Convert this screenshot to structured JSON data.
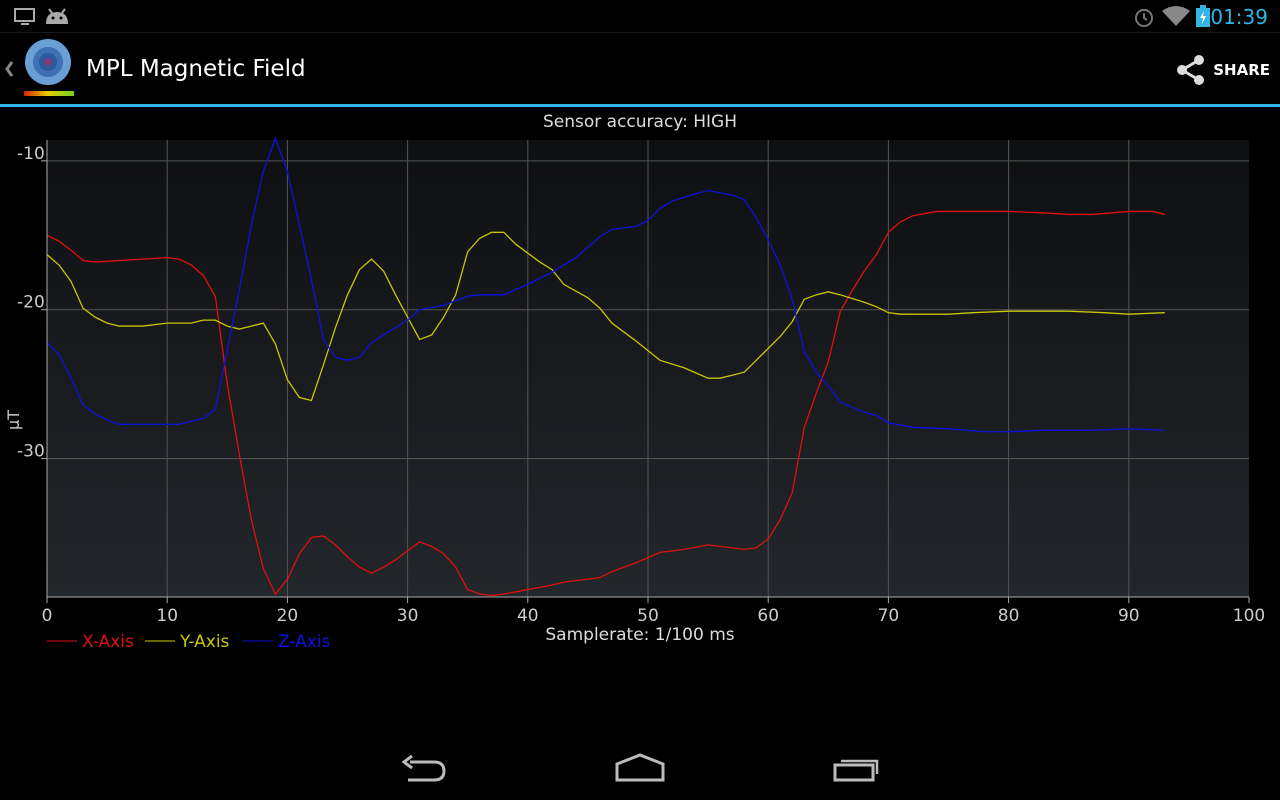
{
  "status_bar": {
    "time": "01:39",
    "icons": [
      "monitor-icon",
      "android-icon",
      "alarm-icon",
      "wifi-icon",
      "battery-charging-icon"
    ]
  },
  "action_bar": {
    "title": "MPL Magnetic Field",
    "share_label": "SHARE",
    "icons": [
      "back-chevron-icon",
      "app-logo-icon",
      "share-icon"
    ]
  },
  "colors": {
    "accent": "#33b5e5",
    "x_axis": "#e01010",
    "y_axis": "#c8c800",
    "z_axis": "#1010e0"
  },
  "chart_data": {
    "type": "line",
    "title": "Sensor accuracy: HIGH",
    "xlabel": "Samplerate: 1/100 ms",
    "ylabel": "μT",
    "xlim": [
      0,
      100
    ],
    "ylim": [
      -39.3,
      -8.6
    ],
    "xticks": [
      "0",
      "10",
      "20",
      "30",
      "40",
      "50",
      "60",
      "70",
      "80",
      "90",
      "100"
    ],
    "yticks": [
      {
        "value": -10,
        "label": "-10"
      },
      {
        "value": -20,
        "label": "-20"
      },
      {
        "value": -30,
        "label": "-30"
      }
    ],
    "grid": true,
    "legend": "bottom-left",
    "series": [
      {
        "name": "X-Axis",
        "color": "#e01010",
        "points": [
          [
            0,
            -15.0
          ],
          [
            1,
            -15.4
          ],
          [
            2,
            -16.0
          ],
          [
            3,
            -16.7
          ],
          [
            4,
            -16.8
          ],
          [
            6,
            -16.7
          ],
          [
            8,
            -16.6
          ],
          [
            10,
            -16.5
          ],
          [
            11,
            -16.6
          ],
          [
            12,
            -17.0
          ],
          [
            13,
            -17.7
          ],
          [
            14,
            -19.1
          ],
          [
            15,
            -25.0
          ],
          [
            16,
            -29.7
          ],
          [
            17,
            -34.1
          ],
          [
            18,
            -37.4
          ],
          [
            19,
            -39.1
          ],
          [
            20,
            -38.1
          ],
          [
            21,
            -36.4
          ],
          [
            22,
            -35.3
          ],
          [
            23,
            -35.2
          ],
          [
            24,
            -35.8
          ],
          [
            25,
            -36.6
          ],
          [
            26,
            -37.3
          ],
          [
            27,
            -37.7
          ],
          [
            28,
            -37.3
          ],
          [
            29,
            -36.8
          ],
          [
            30,
            -36.2
          ],
          [
            31,
            -35.6
          ],
          [
            32,
            -35.9
          ],
          [
            33,
            -36.4
          ],
          [
            34,
            -37.3
          ],
          [
            35,
            -38.8
          ],
          [
            36,
            -39.1
          ],
          [
            37,
            -39.2
          ],
          [
            38,
            -39.1
          ],
          [
            40,
            -38.8
          ],
          [
            42,
            -38.5
          ],
          [
            43,
            -38.3
          ],
          [
            45,
            -38.1
          ],
          [
            46,
            -38.0
          ],
          [
            47,
            -37.6
          ],
          [
            49,
            -37.0
          ],
          [
            51,
            -36.3
          ],
          [
            53,
            -36.1
          ],
          [
            55,
            -35.8
          ],
          [
            56,
            -35.9
          ],
          [
            58,
            -36.1
          ],
          [
            59,
            -36.0
          ],
          [
            60,
            -35.4
          ],
          [
            61,
            -34.1
          ],
          [
            62,
            -32.3
          ],
          [
            63,
            -27.9
          ],
          [
            64,
            -25.6
          ],
          [
            65,
            -23.5
          ],
          [
            66,
            -20.1
          ],
          [
            67,
            -18.7
          ],
          [
            68,
            -17.4
          ],
          [
            69,
            -16.3
          ],
          [
            70,
            -14.8
          ],
          [
            71,
            -14.1
          ],
          [
            72,
            -13.7
          ],
          [
            74,
            -13.4
          ],
          [
            77,
            -13.4
          ],
          [
            80,
            -13.4
          ],
          [
            83,
            -13.5
          ],
          [
            85,
            -13.6
          ],
          [
            87,
            -13.6
          ],
          [
            90,
            -13.4
          ],
          [
            92,
            -13.4
          ],
          [
            93,
            -13.6
          ]
        ]
      },
      {
        "name": "Y-Axis",
        "color": "#c8c800",
        "points": [
          [
            0,
            -16.3
          ],
          [
            1,
            -17.0
          ],
          [
            2,
            -18.1
          ],
          [
            3,
            -19.9
          ],
          [
            4,
            -20.5
          ],
          [
            5,
            -20.9
          ],
          [
            6,
            -21.1
          ],
          [
            8,
            -21.1
          ],
          [
            10,
            -20.9
          ],
          [
            12,
            -20.9
          ],
          [
            13,
            -20.7
          ],
          [
            14,
            -20.7
          ],
          [
            15,
            -21.1
          ],
          [
            16,
            -21.3
          ],
          [
            17,
            -21.1
          ],
          [
            18,
            -20.9
          ],
          [
            19,
            -22.3
          ],
          [
            20,
            -24.7
          ],
          [
            21,
            -25.9
          ],
          [
            22,
            -26.1
          ],
          [
            23,
            -23.7
          ],
          [
            24,
            -21.2
          ],
          [
            25,
            -19.0
          ],
          [
            26,
            -17.3
          ],
          [
            27,
            -16.6
          ],
          [
            28,
            -17.4
          ],
          [
            29,
            -19.0
          ],
          [
            30,
            -20.5
          ],
          [
            31,
            -22.0
          ],
          [
            32,
            -21.7
          ],
          [
            33,
            -20.5
          ],
          [
            34,
            -19.0
          ],
          [
            35,
            -16.1
          ],
          [
            36,
            -15.2
          ],
          [
            37,
            -14.8
          ],
          [
            38,
            -14.8
          ],
          [
            39,
            -15.6
          ],
          [
            41,
            -16.8
          ],
          [
            42,
            -17.3
          ],
          [
            43,
            -18.3
          ],
          [
            45,
            -19.2
          ],
          [
            46,
            -19.9
          ],
          [
            47,
            -20.9
          ],
          [
            49,
            -22.1
          ],
          [
            51,
            -23.4
          ],
          [
            53,
            -23.9
          ],
          [
            55,
            -24.6
          ],
          [
            56,
            -24.6
          ],
          [
            57,
            -24.4
          ],
          [
            58,
            -24.2
          ],
          [
            59,
            -23.4
          ],
          [
            61,
            -21.8
          ],
          [
            62,
            -20.8
          ],
          [
            63,
            -19.3
          ],
          [
            64,
            -19.0
          ],
          [
            65,
            -18.8
          ],
          [
            66,
            -19.0
          ],
          [
            68,
            -19.5
          ],
          [
            69,
            -19.8
          ],
          [
            70,
            -20.2
          ],
          [
            71,
            -20.3
          ],
          [
            75,
            -20.3
          ],
          [
            77,
            -20.2
          ],
          [
            80,
            -20.1
          ],
          [
            85,
            -20.1
          ],
          [
            88,
            -20.2
          ],
          [
            90,
            -20.3
          ],
          [
            93,
            -20.2
          ]
        ]
      },
      {
        "name": "Z-Axis",
        "color": "#1010e0",
        "points": [
          [
            0,
            -22.2
          ],
          [
            1,
            -23.0
          ],
          [
            2,
            -24.6
          ],
          [
            3,
            -26.4
          ],
          [
            4,
            -27.0
          ],
          [
            5,
            -27.4
          ],
          [
            6,
            -27.7
          ],
          [
            8,
            -27.7
          ],
          [
            11,
            -27.7
          ],
          [
            13,
            -27.3
          ],
          [
            14,
            -26.7
          ],
          [
            15,
            -22.7
          ],
          [
            16,
            -18.7
          ],
          [
            17,
            -14.3
          ],
          [
            18,
            -10.7
          ],
          [
            19,
            -8.5
          ],
          [
            20,
            -10.7
          ],
          [
            21,
            -14.3
          ],
          [
            22,
            -18.0
          ],
          [
            23,
            -22.0
          ],
          [
            24,
            -23.2
          ],
          [
            25,
            -23.4
          ],
          [
            26,
            -23.2
          ],
          [
            27,
            -22.2
          ],
          [
            29,
            -21.2
          ],
          [
            30,
            -20.7
          ],
          [
            31,
            -20.0
          ],
          [
            33,
            -19.7
          ],
          [
            35,
            -19.1
          ],
          [
            36,
            -19.0
          ],
          [
            38,
            -19.0
          ],
          [
            40,
            -18.3
          ],
          [
            42,
            -17.5
          ],
          [
            44,
            -16.5
          ],
          [
            46,
            -15.1
          ],
          [
            47,
            -14.6
          ],
          [
            49,
            -14.4
          ],
          [
            50,
            -14.0
          ],
          [
            51,
            -13.2
          ],
          [
            52,
            -12.7
          ],
          [
            54,
            -12.2
          ],
          [
            55,
            -12.0
          ],
          [
            57,
            -12.3
          ],
          [
            58,
            -12.6
          ],
          [
            59,
            -13.8
          ],
          [
            60,
            -15.3
          ],
          [
            61,
            -17.0
          ],
          [
            62,
            -19.3
          ],
          [
            63,
            -22.8
          ],
          [
            64,
            -24.2
          ],
          [
            65,
            -25.1
          ],
          [
            66,
            -26.2
          ],
          [
            68,
            -26.9
          ],
          [
            69,
            -27.1
          ],
          [
            70,
            -27.6
          ],
          [
            72,
            -27.9
          ],
          [
            75,
            -28.0
          ],
          [
            78,
            -28.2
          ],
          [
            80,
            -28.2
          ],
          [
            83,
            -28.1
          ],
          [
            87,
            -28.1
          ],
          [
            90,
            -28.0
          ],
          [
            93,
            -28.1
          ]
        ]
      }
    ]
  },
  "nav_bar": {
    "icons": [
      "back-icon",
      "home-icon",
      "recent-apps-icon"
    ]
  }
}
